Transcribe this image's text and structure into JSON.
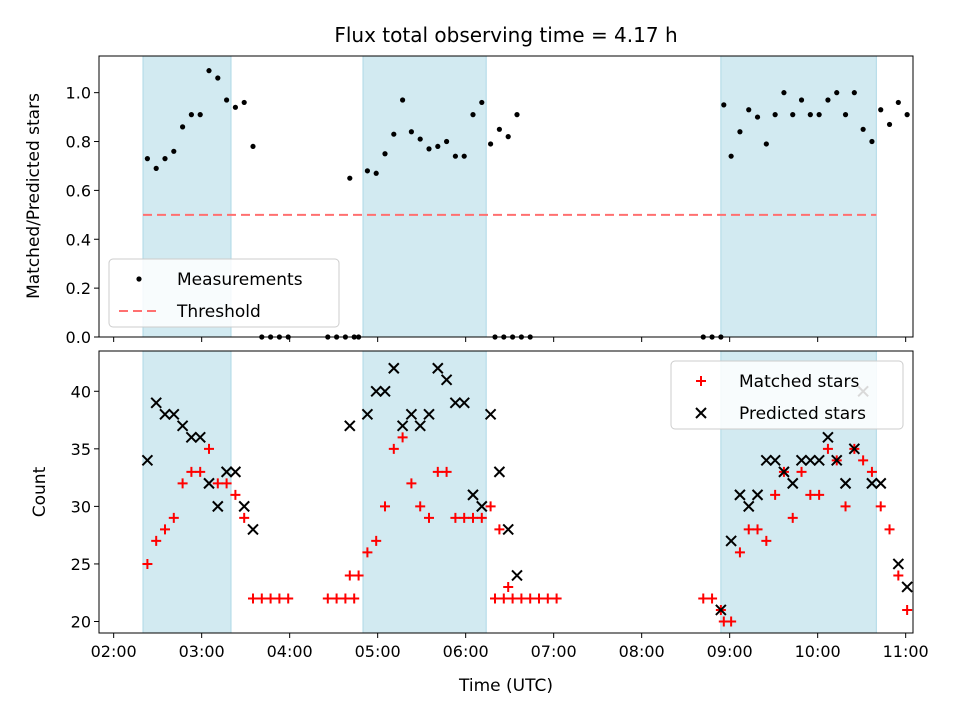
{
  "chart_data": {
    "title": "Flux total observing time = 4.17 h",
    "xlabel": "Time (UTC)",
    "x_ticks": [
      "02:00",
      "03:00",
      "04:00",
      "05:00",
      "06:00",
      "07:00",
      "08:00",
      "09:00",
      "10:00",
      "11:00"
    ],
    "shaded_intervals": [
      [
        "02:20",
        "03:20"
      ],
      [
        "04:50",
        "06:14"
      ],
      [
        "08:54",
        "10:40"
      ]
    ],
    "shade_color": "#add8e6",
    "top": {
      "type": "scatter",
      "ylabel": "Matched/Predicted stars",
      "ylim": [
        0,
        1.15
      ],
      "y_ticks": [
        "0.0",
        "0.2",
        "0.4",
        "0.6",
        "0.8",
        "1.0"
      ],
      "threshold": 0.5,
      "threshold_color": "#ff7070",
      "legend": {
        "position": "lower-left",
        "entries": [
          "Measurements",
          "Threshold"
        ]
      },
      "series": [
        {
          "name": "Measurements",
          "color": "#000000",
          "points": [
            [
              "02:23",
              0.73
            ],
            [
              "02:29",
              0.69
            ],
            [
              "02:35",
              0.73
            ],
            [
              "02:41",
              0.76
            ],
            [
              "02:47",
              0.86
            ],
            [
              "02:53",
              0.91
            ],
            [
              "02:59",
              0.91
            ],
            [
              "03:05",
              1.09
            ],
            [
              "03:11",
              1.06
            ],
            [
              "03:17",
              0.97
            ],
            [
              "03:23",
              0.94
            ],
            [
              "03:29",
              0.96
            ],
            [
              "03:35",
              0.78
            ],
            [
              "03:41",
              0.0
            ],
            [
              "03:47",
              0.0
            ],
            [
              "03:53",
              0.0
            ],
            [
              "03:59",
              0.0
            ],
            [
              "04:26",
              0.0
            ],
            [
              "04:32",
              0.0
            ],
            [
              "04:38",
              0.0
            ],
            [
              "04:44",
              0.0
            ],
            [
              "04:41",
              0.65
            ],
            [
              "04:47",
              0.0
            ],
            [
              "04:53",
              0.68
            ],
            [
              "04:59",
              0.67
            ],
            [
              "05:05",
              0.75
            ],
            [
              "05:11",
              0.83
            ],
            [
              "05:17",
              0.97
            ],
            [
              "05:23",
              0.84
            ],
            [
              "05:29",
              0.81
            ],
            [
              "05:35",
              0.77
            ],
            [
              "05:41",
              0.78
            ],
            [
              "05:47",
              0.8
            ],
            [
              "05:53",
              0.74
            ],
            [
              "05:59",
              0.74
            ],
            [
              "06:05",
              0.91
            ],
            [
              "06:11",
              0.96
            ],
            [
              "06:17",
              0.79
            ],
            [
              "06:23",
              0.85
            ],
            [
              "06:29",
              0.82
            ],
            [
              "06:35",
              0.91
            ],
            [
              "06:20",
              0.0
            ],
            [
              "06:26",
              0.0
            ],
            [
              "06:32",
              0.0
            ],
            [
              "06:38",
              0.0
            ],
            [
              "06:44",
              0.0
            ],
            [
              "08:42",
              0.0
            ],
            [
              "08:48",
              0.0
            ],
            [
              "08:54",
              0.0
            ],
            [
              "08:56",
              0.95
            ],
            [
              "09:01",
              0.74
            ],
            [
              "09:07",
              0.84
            ],
            [
              "09:13",
              0.93
            ],
            [
              "09:19",
              0.9
            ],
            [
              "09:25",
              0.79
            ],
            [
              "09:31",
              0.91
            ],
            [
              "09:37",
              1.0
            ],
            [
              "09:43",
              0.91
            ],
            [
              "09:49",
              0.97
            ],
            [
              "09:55",
              0.91
            ],
            [
              "10:01",
              0.91
            ],
            [
              "10:07",
              0.97
            ],
            [
              "10:13",
              1.0
            ],
            [
              "10:19",
              0.91
            ],
            [
              "10:25",
              1.0
            ],
            [
              "10:31",
              0.85
            ],
            [
              "10:37",
              0.8
            ],
            [
              "10:43",
              0.93
            ],
            [
              "10:49",
              0.87
            ],
            [
              "10:55",
              0.96
            ],
            [
              "11:01",
              0.91
            ]
          ]
        }
      ]
    },
    "bottom": {
      "type": "scatter",
      "ylabel": "Count",
      "ylim": [
        19,
        43.5
      ],
      "y_ticks": [
        "20",
        "25",
        "30",
        "35",
        "40"
      ],
      "legend": {
        "position": "top-right",
        "entries": [
          "Matched stars",
          "Predicted stars"
        ]
      },
      "series": [
        {
          "name": "Matched stars",
          "color": "#ff0000",
          "marker": "+",
          "points": [
            [
              "02:23",
              25
            ],
            [
              "02:29",
              27
            ],
            [
              "02:35",
              28
            ],
            [
              "02:41",
              29
            ],
            [
              "02:47",
              32
            ],
            [
              "02:53",
              33
            ],
            [
              "02:59",
              33
            ],
            [
              "03:05",
              35
            ],
            [
              "03:11",
              32
            ],
            [
              "03:17",
              32
            ],
            [
              "03:23",
              31
            ],
            [
              "03:29",
              29
            ],
            [
              "03:35",
              22
            ],
            [
              "03:41",
              22
            ],
            [
              "03:47",
              22
            ],
            [
              "03:53",
              22
            ],
            [
              "03:59",
              22
            ],
            [
              "04:26",
              22
            ],
            [
              "04:32",
              22
            ],
            [
              "04:38",
              22
            ],
            [
              "04:44",
              22
            ],
            [
              "04:41",
              24
            ],
            [
              "04:47",
              24
            ],
            [
              "04:53",
              26
            ],
            [
              "04:59",
              27
            ],
            [
              "05:05",
              30
            ],
            [
              "05:11",
              35
            ],
            [
              "05:17",
              36
            ],
            [
              "05:23",
              32
            ],
            [
              "05:29",
              30
            ],
            [
              "05:35",
              29
            ],
            [
              "05:41",
              33
            ],
            [
              "05:47",
              33
            ],
            [
              "05:53",
              29
            ],
            [
              "05:59",
              29
            ],
            [
              "06:05",
              29
            ],
            [
              "06:11",
              29
            ],
            [
              "06:17",
              30
            ],
            [
              "06:23",
              28
            ],
            [
              "06:29",
              23
            ],
            [
              "06:20",
              22
            ],
            [
              "06:26",
              22
            ],
            [
              "06:32",
              22
            ],
            [
              "06:38",
              22
            ],
            [
              "06:44",
              22
            ],
            [
              "06:50",
              22
            ],
            [
              "06:56",
              22
            ],
            [
              "07:02",
              22
            ],
            [
              "08:42",
              22
            ],
            [
              "08:48",
              22
            ],
            [
              "08:54",
              21
            ],
            [
              "08:56",
              20
            ],
            [
              "09:01",
              20
            ],
            [
              "09:07",
              26
            ],
            [
              "09:13",
              28
            ],
            [
              "09:19",
              28
            ],
            [
              "09:25",
              27
            ],
            [
              "09:31",
              31
            ],
            [
              "09:37",
              33
            ],
            [
              "09:43",
              29
            ],
            [
              "09:49",
              33
            ],
            [
              "09:55",
              31
            ],
            [
              "10:01",
              31
            ],
            [
              "10:07",
              35
            ],
            [
              "10:13",
              34
            ],
            [
              "10:19",
              30
            ],
            [
              "10:25",
              35
            ],
            [
              "10:31",
              34
            ],
            [
              "10:37",
              33
            ],
            [
              "10:43",
              30
            ],
            [
              "10:49",
              28
            ],
            [
              "10:55",
              24
            ],
            [
              "11:01",
              21
            ]
          ]
        },
        {
          "name": "Predicted stars",
          "color": "#000000",
          "marker": "x",
          "points": [
            [
              "02:23",
              34
            ],
            [
              "02:29",
              39
            ],
            [
              "02:35",
              38
            ],
            [
              "02:41",
              38
            ],
            [
              "02:47",
              37
            ],
            [
              "02:53",
              36
            ],
            [
              "02:59",
              36
            ],
            [
              "03:05",
              32
            ],
            [
              "03:11",
              30
            ],
            [
              "03:17",
              33
            ],
            [
              "03:23",
              33
            ],
            [
              "03:29",
              30
            ],
            [
              "03:35",
              28
            ],
            [
              "04:41",
              37
            ],
            [
              "04:53",
              38
            ],
            [
              "04:59",
              40
            ],
            [
              "05:05",
              40
            ],
            [
              "05:11",
              42
            ],
            [
              "05:17",
              37
            ],
            [
              "05:23",
              38
            ],
            [
              "05:29",
              37
            ],
            [
              "05:35",
              38
            ],
            [
              "05:41",
              42
            ],
            [
              "05:47",
              41
            ],
            [
              "05:53",
              39
            ],
            [
              "05:59",
              39
            ],
            [
              "06:05",
              31
            ],
            [
              "06:11",
              30
            ],
            [
              "06:17",
              38
            ],
            [
              "06:23",
              33
            ],
            [
              "06:29",
              28
            ],
            [
              "06:35",
              24
            ],
            [
              "08:54",
              21
            ],
            [
              "09:01",
              27
            ],
            [
              "09:07",
              31
            ],
            [
              "09:13",
              30
            ],
            [
              "09:19",
              31
            ],
            [
              "09:25",
              34
            ],
            [
              "09:31",
              34
            ],
            [
              "09:37",
              33
            ],
            [
              "09:43",
              32
            ],
            [
              "09:49",
              34
            ],
            [
              "09:55",
              34
            ],
            [
              "10:01",
              34
            ],
            [
              "10:07",
              36
            ],
            [
              "10:13",
              34
            ],
            [
              "10:19",
              32
            ],
            [
              "10:25",
              35
            ],
            [
              "10:31",
              40
            ],
            [
              "10:37",
              32
            ],
            [
              "10:43",
              32
            ],
            [
              "10:55",
              25
            ],
            [
              "11:01",
              23
            ]
          ]
        }
      ]
    }
  }
}
